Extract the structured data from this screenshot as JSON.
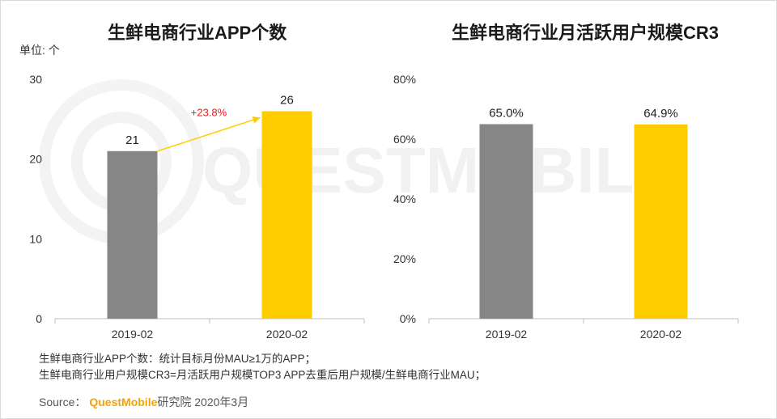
{
  "watermark": "QUESTMOBILE",
  "chart_data": [
    {
      "type": "bar",
      "title": "生鲜电商行业APP个数",
      "unit_label": "单位: 个",
      "categories": [
        "2019-02",
        "2020-02"
      ],
      "values": [
        21,
        26
      ],
      "value_labels": [
        "21",
        "26"
      ],
      "ylim": [
        0,
        30
      ],
      "yticks": [
        0,
        10,
        20,
        30
      ],
      "ytick_labels": [
        "0",
        "10",
        "20",
        "30"
      ],
      "annotation": "+23.8%",
      "colors": [
        "#868686",
        "#ffcc00"
      ],
      "arrow_color": "#ffcc00",
      "annotation_color": "#e02020"
    },
    {
      "type": "bar",
      "title": "生鲜电商行业月活跃用户规模CR3",
      "categories": [
        "2019-02",
        "2020-02"
      ],
      "values": [
        65.0,
        64.9
      ],
      "value_labels": [
        "65.0%",
        "64.9%"
      ],
      "ylim": [
        0,
        80
      ],
      "yticks": [
        0,
        20,
        40,
        60,
        80
      ],
      "ytick_labels": [
        "0%",
        "20%",
        "40%",
        "60%",
        "80%"
      ],
      "colors": [
        "#868686",
        "#ffcc00"
      ]
    }
  ],
  "notes": [
    "生鲜电商行业APP个数：统计目标月份MAU≥1万的APP；",
    "生鲜电商行业用户规模CR3=月活跃用户规模TOP3 APP去重后用户规模/生鲜电商行业MAU；"
  ],
  "source": {
    "label": "Source：",
    "brand": "QuestMobile",
    "rest": "研究院 2020年3月"
  }
}
